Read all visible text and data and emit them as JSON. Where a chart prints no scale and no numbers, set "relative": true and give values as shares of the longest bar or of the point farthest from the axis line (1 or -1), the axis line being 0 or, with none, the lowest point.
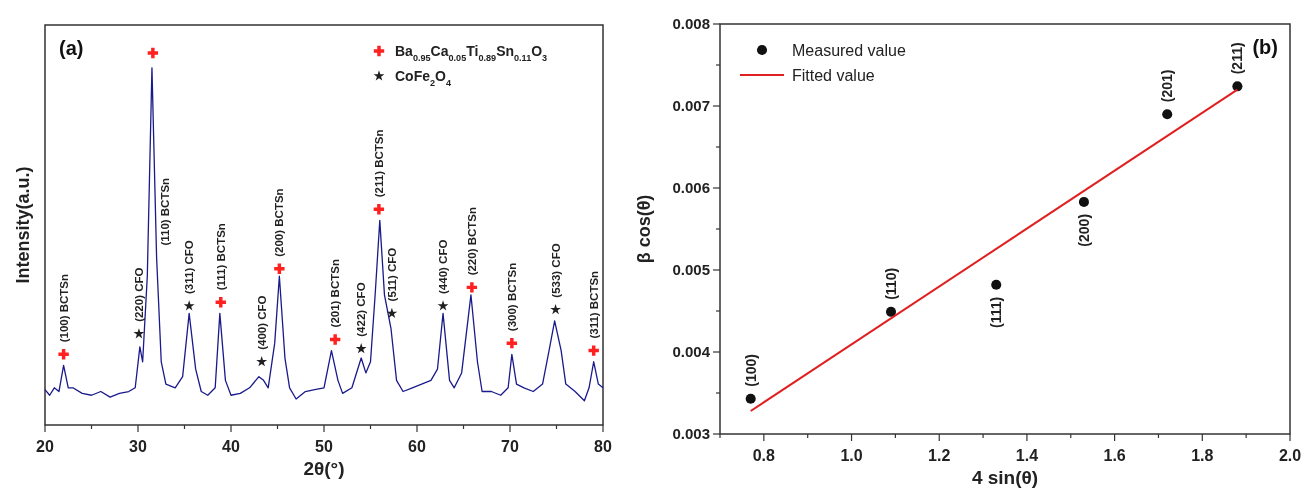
{
  "chart_data": [
    {
      "type": "line",
      "relative": true,
      "xlabel": "2θ(°)",
      "ylabel": "Intensity(a.u.)",
      "xlim": [
        20,
        80
      ],
      "xticks": [
        20,
        {
          "value": 25,
          "label": null
        },
        30,
        {
          "value": 35,
          "label": null
        },
        40,
        {
          "value": 45,
          "label": null
        },
        50,
        {
          "value": 55,
          "label": null
        },
        60,
        {
          "value": 65,
          "label": null
        },
        70,
        {
          "value": 75,
          "label": null
        },
        80
      ],
      "legend": "top right",
      "series": [
        {
          "color": "#1a1a8c",
          "x": [
            20,
            20.5,
            21,
            21.5,
            22,
            22.5,
            23,
            24,
            25,
            26,
            27,
            28,
            29,
            29.7,
            30.2,
            30.5,
            31,
            31.5,
            32,
            32.5,
            33,
            34,
            34.8,
            35.5,
            36.2,
            36.8,
            37.5,
            38.3,
            38.8,
            39.4,
            40,
            41,
            42,
            43,
            43.5,
            44,
            44.7,
            45.2,
            45.8,
            46.3,
            47,
            48,
            49,
            50,
            50.8,
            51.5,
            52,
            53,
            54,
            54.5,
            55,
            55.5,
            56,
            56.5,
            57.2,
            57.8,
            58.5,
            59.5,
            60.5,
            61.5,
            62.2,
            62.8,
            63.5,
            64,
            64.8,
            65.8,
            66.5,
            67,
            68,
            69,
            69.8,
            70.2,
            70.7,
            71.5,
            72.5,
            73.5,
            74.2,
            74.8,
            75.5,
            76,
            77,
            78,
            78.5,
            79,
            79.5,
            80
          ],
          "values": [
            0.095,
            0.08,
            0.1,
            0.09,
            0.16,
            0.1,
            0.1,
            0.085,
            0.08,
            0.09,
            0.075,
            0.085,
            0.09,
            0.1,
            0.21,
            0.17,
            0.4,
            0.96,
            0.45,
            0.17,
            0.11,
            0.1,
            0.13,
            0.3,
            0.15,
            0.09,
            0.08,
            0.1,
            0.3,
            0.12,
            0.08,
            0.085,
            0.1,
            0.13,
            0.12,
            0.1,
            0.22,
            0.4,
            0.18,
            0.1,
            0.07,
            0.09,
            0.095,
            0.1,
            0.2,
            0.12,
            0.085,
            0.1,
            0.18,
            0.14,
            0.17,
            0.35,
            0.55,
            0.35,
            0.26,
            0.12,
            0.09,
            0.1,
            0.11,
            0.12,
            0.15,
            0.3,
            0.12,
            0.1,
            0.14,
            0.35,
            0.17,
            0.09,
            0.09,
            0.08,
            0.1,
            0.19,
            0.11,
            0.1,
            0.09,
            0.11,
            0.2,
            0.28,
            0.2,
            0.11,
            0.09,
            0.065,
            0.1,
            0.17,
            0.11,
            0.1
          ]
        },
        {
          "type": "scatter",
          "name": "Ba$_{0.95}$Ca$_{0.05}$Ti$_{0.89}$Sn$_{0.11}$O$_{3}$",
          "marker": "cross",
          "color": "#ff2020",
          "x": [
            22,
            31.6,
            38.9,
            45.2,
            51.2,
            55.9,
            65.9,
            70.2,
            79
          ],
          "values": [
            0.19,
            1.0,
            0.33,
            0.42,
            0.23,
            0.58,
            0.37,
            0.22,
            0.2
          ]
        },
        {
          "type": "scatter",
          "name": "CoFe$_{2}$O$_{4}$",
          "marker": "star",
          "color": "#202020",
          "x": [
            30.1,
            35.5,
            43.3,
            54.0,
            57.3,
            62.8,
            74.9
          ],
          "values": [
            0.245,
            0.32,
            0.17,
            0.205,
            0.3,
            0.32,
            0.31
          ]
        }
      ],
      "annotations": [
        "(a)",
        {
          "text": "(100) BCTSn",
          "x": 22,
          "y": 0.19
        },
        {
          "text": "(220) CFO",
          "x": 30.1,
          "y": 0.245
        },
        {
          "text": "(110) BCTSn",
          "x": 32.0,
          "y": 0.45
        },
        {
          "text": "(311) CFO",
          "x": 35.5,
          "y": 0.32
        },
        {
          "text": "(111) BCTSn",
          "x": 38.9,
          "y": 0.33
        },
        {
          "text": "(400) CFO",
          "x": 43.3,
          "y": 0.17
        },
        {
          "text": "(200) BCTSn",
          "x": 45.2,
          "y": 0.42
        },
        {
          "text": "(201) BCTSn",
          "x": 51.2,
          "y": 0.23
        },
        {
          "text": "(422) CFO",
          "x": 54.0,
          "y": 0.205
        },
        {
          "text": "(211) BCTSn",
          "x": 55.9,
          "y": 0.58
        },
        {
          "text": "(511) CFO",
          "x": 57.3,
          "y": 0.3
        },
        {
          "text": "(440) CFO",
          "x": 62.8,
          "y": 0.32
        },
        {
          "text": "(220) BCTSn",
          "x": 65.9,
          "y": 0.37
        },
        {
          "text": "(300) BCTSn",
          "x": 70.2,
          "y": 0.22
        },
        {
          "text": "(533) CFO",
          "x": 74.9,
          "y": 0.31
        },
        {
          "text": "(311) BCTSn",
          "x": 79,
          "y": 0.2
        }
      ]
    },
    {
      "type": "scatter",
      "xlabel": "4 sin(θ)",
      "ylabel": "β cos(θ)",
      "xlim": [
        0.7,
        2.0
      ],
      "ylim": [
        0.003,
        0.008
      ],
      "xticks": [
        {
          "value": 0.7,
          "label": null
        },
        0.8,
        {
          "value": 0.9,
          "label": null
        },
        {
          "value": 1.0,
          "label": "1.0"
        },
        {
          "value": 1.1,
          "label": null
        },
        1.2,
        {
          "value": 1.3,
          "label": null
        },
        1.4,
        {
          "value": 1.5,
          "label": null
        },
        1.6,
        {
          "value": 1.7,
          "label": null
        },
        1.8,
        {
          "value": 1.9,
          "label": null
        },
        {
          "value": 2.0,
          "label": "2.0"
        }
      ],
      "yticks": [
        0.003,
        {
          "value": 0.0035,
          "label": null
        },
        0.004,
        {
          "value": 0.0045,
          "label": null
        },
        0.005,
        {
          "value": 0.0055,
          "label": null
        },
        0.006,
        {
          "value": 0.0065,
          "label": null
        },
        0.007,
        {
          "value": 0.0075,
          "label": null
        },
        0.008
      ],
      "legend": "top left",
      "series": [
        {
          "name": "Measured value",
          "marker": "circle",
          "color": "#111111",
          "x": [
            0.77,
            1.09,
            1.33,
            1.53,
            1.72,
            1.88
          ],
          "values": [
            0.00343,
            0.00449,
            0.00482,
            0.00583,
            0.0069,
            0.00724
          ]
        },
        {
          "type": "line",
          "name": "Fitted value",
          "color": "#e02020",
          "x": [
            0.77,
            1.88
          ],
          "values": [
            0.00328,
            0.0072
          ]
        }
      ],
      "annotations": [
        "(b)",
        {
          "text": "(100)",
          "x": 0.77,
          "y": 0.00343
        },
        {
          "text": "(110)",
          "x": 1.09,
          "y": 0.00449
        },
        {
          "text": "(111)",
          "x": 1.33,
          "y": 0.00482
        },
        {
          "text": "(200)",
          "x": 1.53,
          "y": 0.00583
        },
        {
          "text": "(201)",
          "x": 1.72,
          "y": 0.0069
        },
        {
          "text": "(211)",
          "x": 1.88,
          "y": 0.00724
        }
      ]
    }
  ]
}
